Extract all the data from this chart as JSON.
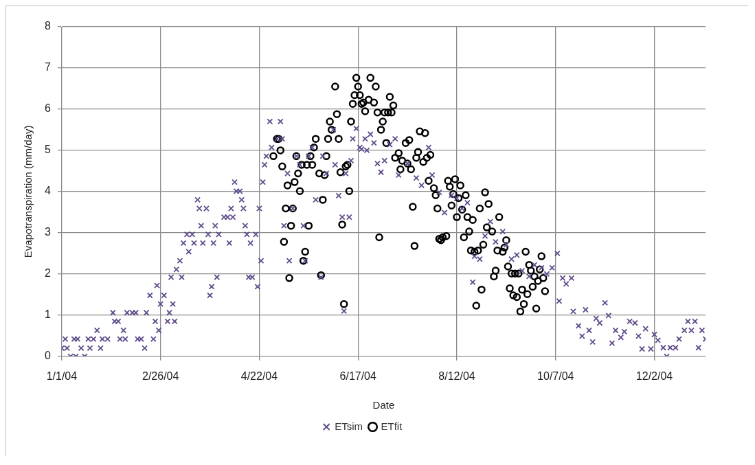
{
  "chart_data": {
    "type": "scatter",
    "xlabel": "Date",
    "ylabel": "Evapotranspiration (mm/day)",
    "xlim": [
      "2004-01-01",
      "2004-12-31"
    ],
    "xticks": [
      {
        "value": "2004-01-01",
        "label": "1/1/04"
      },
      {
        "value": "2004-02-26",
        "label": "2/26/04"
      },
      {
        "value": "2004-04-22",
        "label": "4/22/04"
      },
      {
        "value": "2004-06-17",
        "label": "6/17/04"
      },
      {
        "value": "2004-08-12",
        "label": "8/12/04"
      },
      {
        "value": "2004-10-07",
        "label": "10/7/04"
      },
      {
        "value": "2004-12-02",
        "label": "12/2/04"
      }
    ],
    "ylim": [
      0,
      8
    ],
    "yticks": [
      0,
      1,
      2,
      3,
      4,
      5,
      6,
      7,
      8
    ],
    "grid": true,
    "legend": "bottom",
    "series": [
      {
        "name": "ETsim",
        "color": "#5f4b8b",
        "marker": "cross",
        "x": [
          "2004-01-01",
          "2004-01-03",
          "2004-01-04",
          "2004-01-06",
          "2004-01-08",
          "2004-01-09",
          "2004-01-10",
          "2004-01-12",
          "2004-01-14",
          "2004-01-16",
          "2004-01-17",
          "2004-01-19",
          "2004-01-21",
          "2004-01-23",
          "2004-01-24",
          "2004-01-27",
          "2004-01-30",
          "2004-01-31",
          "2004-02-02",
          "2004-02-03",
          "2004-02-05",
          "2004-02-06",
          "2004-02-07",
          "2004-02-10",
          "2004-02-12",
          "2004-02-13",
          "2004-02-15",
          "2004-02-17",
          "2004-02-18",
          "2004-02-20",
          "2004-02-22",
          "2004-02-23",
          "2004-02-24",
          "2004-02-25",
          "2004-02-26",
          "2004-02-28",
          "2004-03-01",
          "2004-03-02",
          "2004-03-03",
          "2004-03-04",
          "2004-03-05",
          "2004-03-06",
          "2004-03-08",
          "2004-03-09",
          "2004-03-10",
          "2004-03-12",
          "2004-03-13",
          "2004-03-15",
          "2004-03-16",
          "2004-03-18",
          "2004-03-19",
          "2004-03-20",
          "2004-03-21",
          "2004-03-23",
          "2004-03-24",
          "2004-03-25",
          "2004-03-26",
          "2004-03-27",
          "2004-03-28",
          "2004-03-29",
          "2004-03-30",
          "2004-04-02",
          "2004-04-04",
          "2004-04-05",
          "2004-04-06",
          "2004-04-07",
          "2004-04-08",
          "2004-04-09",
          "2004-04-11",
          "2004-04-12",
          "2004-04-13",
          "2004-04-14",
          "2004-04-15",
          "2004-04-16",
          "2004-04-17",
          "2004-04-18",
          "2004-04-20",
          "2004-04-21",
          "2004-04-22",
          "2004-04-23",
          "2004-04-24",
          "2004-04-25",
          "2004-04-26",
          "2004-04-28",
          "2004-04-29",
          "2004-05-02",
          "2004-05-04",
          "2004-05-05",
          "2004-05-06",
          "2004-05-08",
          "2004-05-09",
          "2004-05-11",
          "2004-05-13",
          "2004-05-15",
          "2004-05-17",
          "2004-05-18",
          "2004-05-20",
          "2004-05-22",
          "2004-05-24",
          "2004-05-27",
          "2004-05-28",
          "2004-05-30",
          "2004-06-03",
          "2004-06-04",
          "2004-06-06",
          "2004-06-08",
          "2004-06-09",
          "2004-06-10",
          "2004-06-12",
          "2004-06-13",
          "2004-06-14",
          "2004-06-16",
          "2004-06-18",
          "2004-06-19",
          "2004-06-21",
          "2004-06-22",
          "2004-06-24",
          "2004-06-26",
          "2004-06-28",
          "2004-06-30",
          "2004-07-02",
          "2004-07-05",
          "2004-07-08",
          "2004-07-10",
          "2004-07-15",
          "2004-07-20",
          "2004-07-23",
          "2004-07-27",
          "2004-07-29",
          "2004-08-02",
          "2004-08-05",
          "2004-08-09",
          "2004-08-12",
          "2004-08-15",
          "2004-08-18",
          "2004-08-21",
          "2004-08-22",
          "2004-08-25",
          "2004-08-28",
          "2004-08-31",
          "2004-09-03",
          "2004-09-07",
          "2004-09-09",
          "2004-09-12",
          "2004-09-15",
          "2004-09-18",
          "2004-09-22",
          "2004-09-25",
          "2004-09-29",
          "2004-10-02",
          "2004-10-05",
          "2004-10-08",
          "2004-10-09",
          "2004-10-11",
          "2004-10-13",
          "2004-10-16",
          "2004-10-17",
          "2004-10-20",
          "2004-10-22",
          "2004-10-24",
          "2004-10-26",
          "2004-10-28",
          "2004-10-30",
          "2004-11-01",
          "2004-11-04",
          "2004-11-06",
          "2004-11-08",
          "2004-11-10",
          "2004-11-13",
          "2004-11-15",
          "2004-11-18",
          "2004-11-21",
          "2004-11-23",
          "2004-11-25",
          "2004-11-27",
          "2004-11-30",
          "2004-12-02",
          "2004-12-04",
          "2004-12-07",
          "2004-12-09",
          "2004-12-11",
          "2004-12-14",
          "2004-12-16",
          "2004-12-19",
          "2004-12-21",
          "2004-12-23",
          "2004-12-25",
          "2004-12-27",
          "2004-12-29",
          "2004-12-31"
        ],
        "values": [
          0.2,
          0.42,
          0.2,
          0,
          0.42,
          0,
          0.42,
          0.2,
          0,
          0.42,
          0.2,
          0.42,
          0.63,
          0.2,
          0.42,
          0.42,
          1.06,
          0.85,
          0.85,
          0.42,
          0.63,
          0.42,
          1.06,
          1.06,
          1.06,
          0.42,
          0.42,
          0.2,
          1.06,
          1.48,
          0.42,
          0.85,
          1.72,
          0.63,
          1.27,
          1.48,
          0.85,
          1.06,
          1.92,
          1.27,
          0.85,
          2.11,
          2.32,
          1.92,
          2.75,
          2.96,
          2.54,
          2.96,
          2.75,
          3.8,
          3.59,
          3.17,
          2.75,
          3.59,
          2.96,
          1.48,
          1.69,
          2.75,
          3.17,
          1.92,
          2.96,
          3.38,
          3.38,
          2.75,
          3.59,
          3.38,
          4.23,
          4.01,
          4.01,
          3.8,
          3.59,
          3.17,
          2.96,
          1.92,
          2.75,
          1.92,
          2.96,
          1.69,
          3.59,
          2.32,
          4.23,
          4.65,
          4.86,
          5.7,
          5.07,
          5.28,
          5.7,
          5.28,
          3.17,
          4.44,
          2.32,
          3.59,
          4.86,
          4.65,
          3.17,
          2.32,
          4.86,
          5.07,
          3.8,
          1.92,
          4.86,
          4.44,
          5.5,
          4.65,
          3.9,
          3.38,
          1.1,
          4.44,
          3.38,
          4.75,
          5.28,
          5.53,
          5.07,
          5.03,
          5.28,
          5.0,
          5.39,
          5.18,
          4.68,
          4.47,
          4.75,
          5.14,
          5.28,
          4.4,
          4.68,
          4.33,
          4.15,
          5.07,
          4.4,
          3.98,
          3.49,
          3.91,
          3.84,
          3.59,
          3.73,
          1.8,
          2.43,
          2.36,
          2.92,
          3.27,
          2.78,
          3.03,
          2.71,
          2.36,
          2.46,
          2.08,
          1.94,
          2.22,
          2.15,
          2.0,
          2.15,
          2.5,
          1.34,
          1.9,
          1.76,
          1.9,
          1.09,
          0.74,
          0.49,
          1.13,
          0.63,
          0.35,
          0.92,
          0.81,
          1.3,
          0.99,
          0.32,
          0.63,
          0.46,
          0.6,
          0.85,
          0.81,
          0.49,
          0.18,
          0.67,
          0.18,
          0.53,
          0.39,
          0.21,
          0,
          0.21,
          0.21,
          0.42,
          0.63,
          0.85,
          0.63,
          0.85,
          0.21,
          0.63,
          0.42
        ]
      },
      {
        "name": "ETfit",
        "color": "#000000",
        "marker": "circle",
        "x": [
          "2004-04-30",
          "2004-05-02",
          "2004-05-03",
          "2004-05-04",
          "2004-05-05",
          "2004-05-06",
          "2004-05-07",
          "2004-05-08",
          "2004-05-09",
          "2004-05-10",
          "2004-05-11",
          "2004-05-12",
          "2004-05-13",
          "2004-05-14",
          "2004-05-15",
          "2004-05-16",
          "2004-05-17",
          "2004-05-18",
          "2004-05-19",
          "2004-05-20",
          "2004-05-21",
          "2004-05-22",
          "2004-05-23",
          "2004-05-24",
          "2004-05-26",
          "2004-05-27",
          "2004-05-28",
          "2004-05-29",
          "2004-05-30",
          "2004-05-31",
          "2004-06-01",
          "2004-06-02",
          "2004-06-04",
          "2004-06-05",
          "2004-06-06",
          "2004-06-07",
          "2004-06-08",
          "2004-06-09",
          "2004-06-10",
          "2004-06-11",
          "2004-06-12",
          "2004-06-13",
          "2004-06-14",
          "2004-06-15",
          "2004-06-16",
          "2004-06-17",
          "2004-06-18",
          "2004-06-19",
          "2004-06-20",
          "2004-06-21",
          "2004-06-23",
          "2004-06-24",
          "2004-06-26",
          "2004-06-27",
          "2004-06-28",
          "2004-06-29",
          "2004-06-30",
          "2004-07-01",
          "2004-07-02",
          "2004-07-03",
          "2004-07-04",
          "2004-07-05",
          "2004-07-06",
          "2004-07-07",
          "2004-07-08",
          "2004-07-10",
          "2004-07-11",
          "2004-07-12",
          "2004-07-14",
          "2004-07-15",
          "2004-07-16",
          "2004-07-17",
          "2004-07-18",
          "2004-07-19",
          "2004-07-20",
          "2004-07-21",
          "2004-07-22",
          "2004-07-24",
          "2004-07-25",
          "2004-07-26",
          "2004-07-27",
          "2004-07-28",
          "2004-07-30",
          "2004-07-31",
          "2004-08-01",
          "2004-08-02",
          "2004-08-03",
          "2004-08-04",
          "2004-08-06",
          "2004-08-07",
          "2004-08-08",
          "2004-08-09",
          "2004-08-10",
          "2004-08-11",
          "2004-08-12",
          "2004-08-13",
          "2004-08-14",
          "2004-08-15",
          "2004-08-16",
          "2004-08-17",
          "2004-08-18",
          "2004-08-19",
          "2004-08-20",
          "2004-08-21",
          "2004-08-22",
          "2004-08-23",
          "2004-08-24",
          "2004-08-25",
          "2004-08-26",
          "2004-08-27",
          "2004-08-28",
          "2004-08-29",
          "2004-08-30",
          "2004-09-01",
          "2004-09-02",
          "2004-09-03",
          "2004-09-04",
          "2004-09-05",
          "2004-09-07",
          "2004-09-08",
          "2004-09-09",
          "2004-09-10",
          "2004-09-11",
          "2004-09-12",
          "2004-09-13",
          "2004-09-14",
          "2004-09-15",
          "2004-09-16",
          "2004-09-17",
          "2004-09-18",
          "2004-09-19",
          "2004-09-20",
          "2004-09-21",
          "2004-09-22",
          "2004-09-23",
          "2004-09-24",
          "2004-09-25",
          "2004-09-26",
          "2004-09-27",
          "2004-09-28",
          "2004-09-29",
          "2004-09-30",
          "2004-10-01"
        ],
        "values": [
          4.86,
          5.28,
          5.28,
          5.0,
          4.61,
          2.78,
          3.59,
          4.15,
          1.9,
          3.17,
          3.59,
          4.23,
          4.86,
          4.44,
          4.01,
          4.65,
          2.32,
          2.54,
          4.65,
          3.17,
          4.86,
          4.65,
          5.07,
          5.28,
          4.44,
          1.97,
          3.8,
          4.4,
          4.86,
          5.28,
          5.7,
          5.5,
          6.55,
          5.88,
          5.28,
          4.47,
          3.2,
          1.27,
          4.61,
          4.65,
          4.01,
          5.7,
          6.13,
          6.34,
          6.76,
          6.55,
          6.34,
          6.13,
          6.16,
          5.95,
          6.23,
          6.76,
          6.16,
          6.55,
          5.92,
          2.89,
          5.5,
          5.7,
          5.92,
          5.18,
          5.92,
          6.3,
          5.92,
          6.09,
          4.82,
          4.93,
          4.54,
          4.75,
          5.18,
          4.68,
          5.25,
          4.54,
          3.63,
          2.68,
          4.82,
          4.96,
          5.46,
          4.72,
          5.42,
          4.82,
          4.26,
          4.89,
          4.08,
          3.91,
          3.59,
          2.85,
          2.82,
          2.89,
          2.92,
          4.26,
          4.12,
          3.66,
          3.94,
          4.3,
          3.38,
          3.84,
          4.15,
          3.56,
          2.89,
          3.91,
          3.38,
          3.03,
          2.57,
          3.31,
          2.54,
          1.23,
          2.57,
          3.59,
          1.62,
          2.71,
          3.98,
          3.13,
          3.7,
          3.03,
          1.94,
          2.08,
          2.57,
          3.38,
          2.54,
          2.64,
          2.82,
          2.18,
          1.65,
          2.01,
          1.48,
          2.01,
          1.44,
          2.01,
          1.09,
          1.62,
          1.27,
          2.54,
          1.51,
          2.22,
          2.08,
          1.69,
          1.94,
          1.16,
          1.83,
          2.11,
          2.43,
          1.9,
          1.58
        ]
      }
    ]
  }
}
